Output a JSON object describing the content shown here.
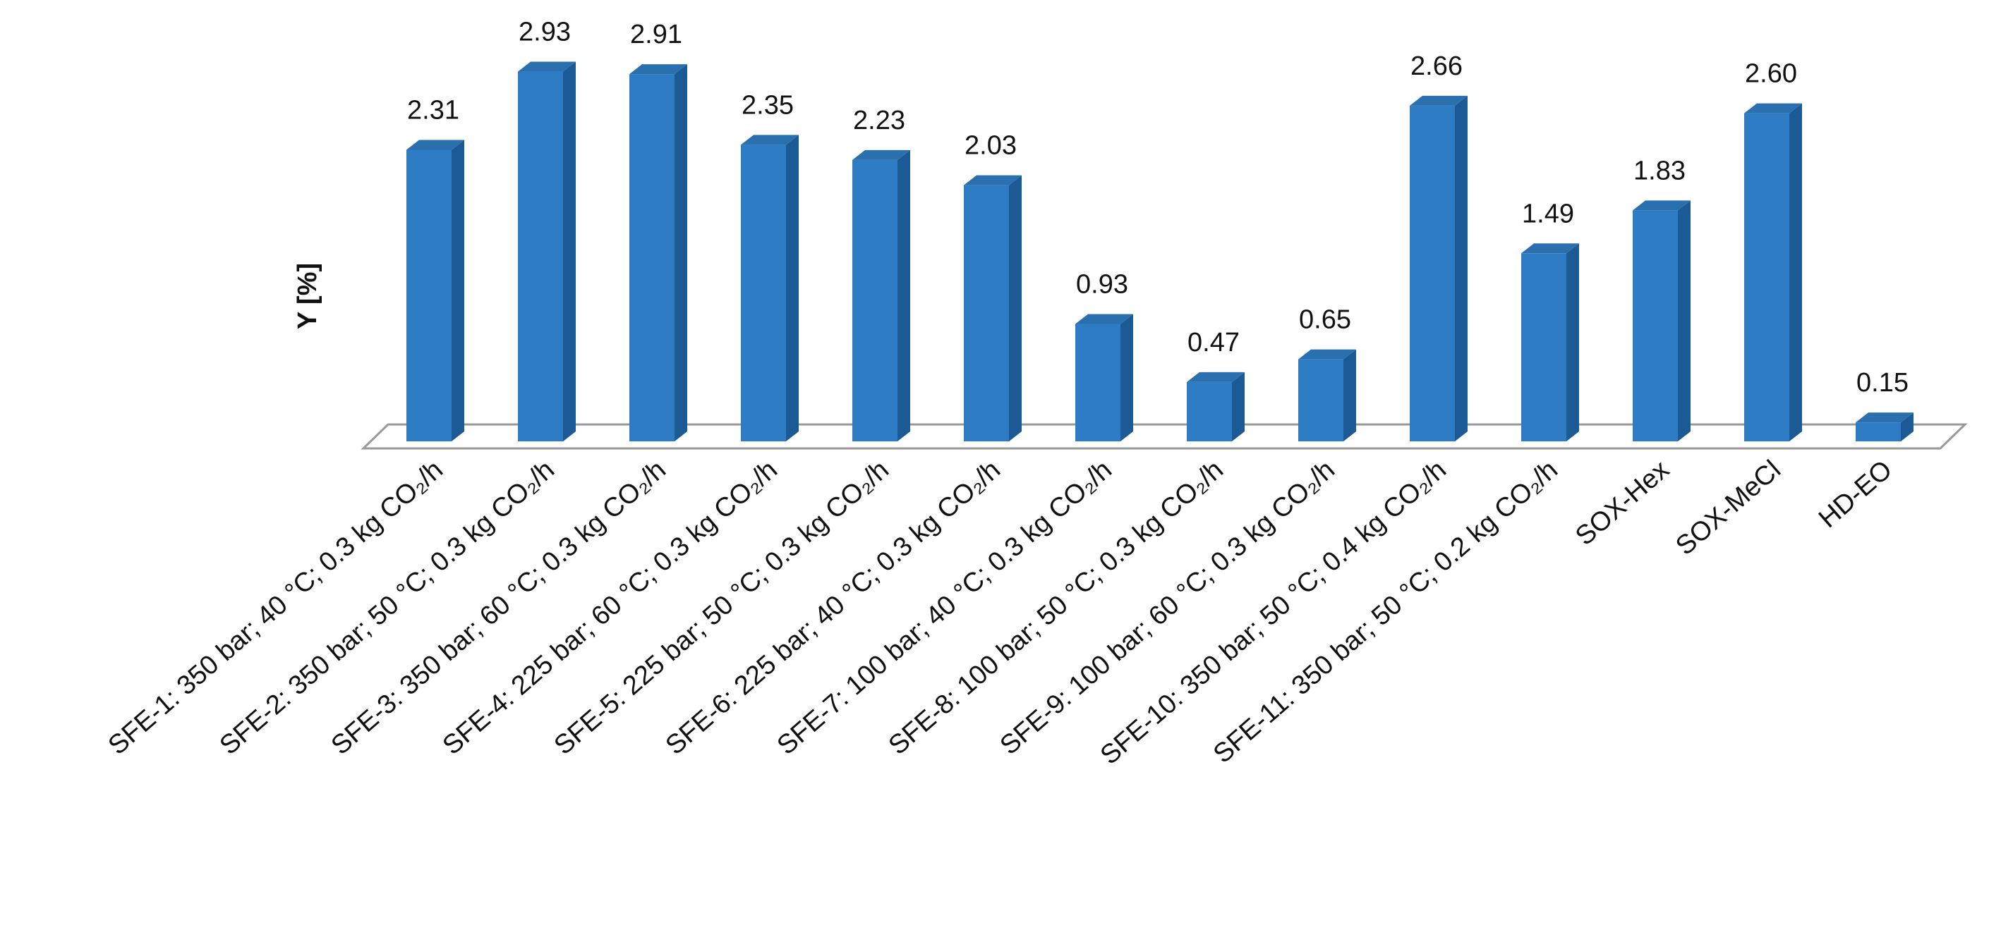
{
  "chart_data": {
    "type": "bar",
    "y_label": "Y [%]",
    "categories": [
      "SFE-1: 350 bar; 40 °C; 0.3 kg CO₂/h",
      "SFE-2: 350 bar; 50 °C; 0.3 kg CO₂/h",
      "SFE-3: 350 bar; 60 °C; 0.3 kg CO₂/h",
      "SFE-4: 225 bar; 60 °C; 0.3 kg CO₂/h",
      "SFE-5: 225 bar; 50 °C; 0.3 kg CO₂/h",
      "SFE-6: 225 bar; 40 °C; 0.3 kg CO₂/h",
      "SFE-7: 100 bar; 40 °C; 0.3 kg CO₂/h",
      "SFE-8: 100 bar; 50 °C; 0.3 kg CO₂/h",
      "SFE-9: 100 bar; 60 °C; 0.3 kg CO₂/h",
      "SFE-10: 350 bar; 50 °C; 0.4 kg CO₂/h",
      "SFE-11: 350 bar; 50 °C; 0.2 kg CO₂/h",
      "SOX-Hex",
      "SOX-MeCl",
      "HD-EO"
    ],
    "values": [
      2.31,
      2.93,
      2.91,
      2.35,
      2.23,
      2.03,
      0.93,
      0.47,
      0.65,
      2.66,
      1.49,
      1.83,
      2.6,
      0.15
    ],
    "value_labels": [
      "2.31",
      "2.93",
      "2.91",
      "2.35",
      "2.23",
      "2.03",
      "0.93",
      "0.47",
      "0.65",
      "2.66",
      "1.49",
      "1.83",
      "2.60",
      "0.15"
    ],
    "color": "#2e7dc4",
    "ylim": [
      0,
      3
    ]
  }
}
